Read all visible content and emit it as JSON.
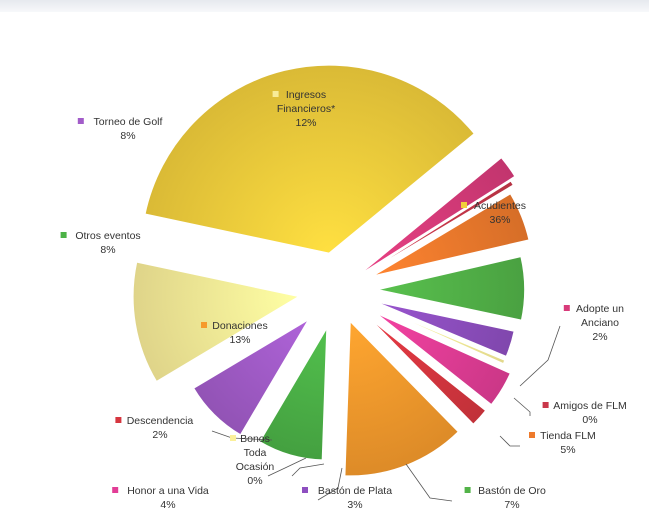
{
  "chart_data": {
    "type": "pie",
    "exploded": true,
    "slices": [
      {
        "key": "acudientes",
        "label_lines": [
          "Acudientes"
        ],
        "pct_text": "36%",
        "value": 36,
        "color": "#f2cf3c"
      },
      {
        "key": "adopte",
        "label_lines": [
          "Adopte un",
          "Anciano"
        ],
        "pct_text": "2%",
        "value": 2,
        "color": "#d83b7a"
      },
      {
        "key": "amigos",
        "label_lines": [
          "Amigos de FLM"
        ],
        "pct_text": "0%",
        "value": 0.4,
        "color": "#c9374a"
      },
      {
        "key": "tienda",
        "label_lines": [
          "Tienda FLM"
        ],
        "pct_text": "5%",
        "value": 5,
        "color": "#ee7a2c"
      },
      {
        "key": "oro",
        "label_lines": [
          "Bastón de Oro"
        ],
        "pct_text": "7%",
        "value": 7,
        "color": "#52b348"
      },
      {
        "key": "plata",
        "label_lines": [
          "Bastón de Plata"
        ],
        "pct_text": "3%",
        "value": 3,
        "color": "#8e4fc0"
      },
      {
        "key": "bonos",
        "label_lines": [
          "Bonos",
          "Toda",
          "Ocasión"
        ],
        "pct_text": "0%",
        "value": 0.4,
        "color": "#fbf09a"
      },
      {
        "key": "honor",
        "label_lines": [
          "Honor a una Vida"
        ],
        "pct_text": "4%",
        "value": 4,
        "color": "#e23d96"
      },
      {
        "key": "descendencia",
        "label_lines": [
          "Descendencia"
        ],
        "pct_text": "2%",
        "value": 2,
        "color": "#d6363f"
      },
      {
        "key": "donaciones",
        "label_lines": [
          "Donaciones"
        ],
        "pct_text": "13%",
        "value": 13,
        "color": "#f69a2c"
      },
      {
        "key": "otros",
        "label_lines": [
          "Otros eventos"
        ],
        "pct_text": "8%",
        "value": 8,
        "color": "#4cb247"
      },
      {
        "key": "golf",
        "label_lines": [
          "Torneo de Golf"
        ],
        "pct_text": "8%",
        "value": 8,
        "color": "#a25cc9"
      },
      {
        "key": "ingresos",
        "label_lines": [
          "Ingresos",
          "Financieros*"
        ],
        "pct_text": "12%",
        "value": 12,
        "color": "#f8ec98"
      }
    ]
  }
}
